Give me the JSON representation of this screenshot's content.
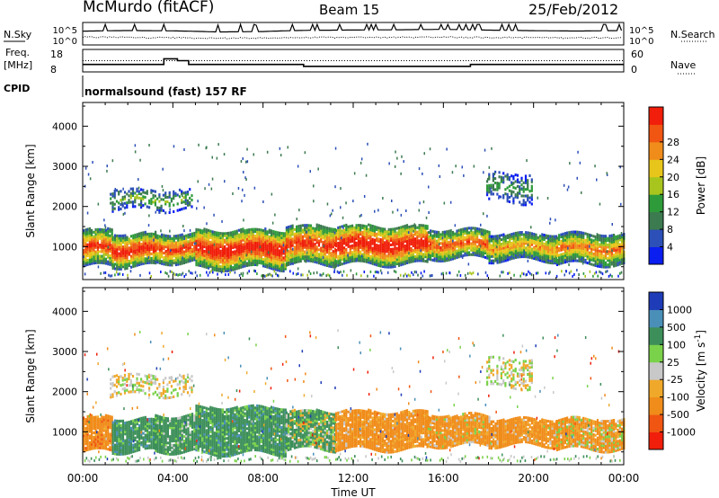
{
  "header": {
    "station": "McMurdo (fitACF)",
    "beam": "Beam 15",
    "date": "25/Feb/2012"
  },
  "summary_panel": {
    "nsky_label": "N.Sky",
    "nsearch_label": "N.Search",
    "noise_ticks": [
      "10^5",
      "10^0"
    ],
    "freq_label_1": "Freq.",
    "freq_label_2": "[MHz]",
    "freq_ticks": [
      "18",
      "8"
    ],
    "nave_label": "Nave",
    "nave_ticks": [
      "60",
      "0"
    ],
    "cpid_label": "CPID",
    "cpid_text": "normalsound (fast) 157 RF"
  },
  "x_axis": {
    "label": "Time UT",
    "ticks": [
      "00:00",
      "04:00",
      "08:00",
      "12:00",
      "16:00",
      "20:00",
      "00:00"
    ]
  },
  "colors": {
    "power": [
      "#0a1ef0",
      "#2c4fb8",
      "#3c7a4f",
      "#2e9b3a",
      "#a8c51e",
      "#e8c51a",
      "#f08c1a",
      "#f05512",
      "#f01e0a"
    ],
    "velocity": [
      "#f01e0a",
      "#f05512",
      "#f08c1a",
      "#f0a82a",
      "#c8c8c8",
      "#7ad24a",
      "#3d8f5a",
      "#4a8fb8",
      "#1e3cb8"
    ]
  },
  "chart_data": [
    {
      "type": "line",
      "title": "",
      "xlabel": "",
      "ylabel": "N.Sky",
      "y2label": "N.Search",
      "yscale": "log",
      "y_tick_labels": [
        "10^0",
        "10^5"
      ],
      "x_hours": [
        0,
        2,
        4,
        6,
        8,
        10,
        12,
        14,
        16,
        18,
        20,
        22,
        24
      ],
      "series": [
        {
          "name": "N.Sky",
          "style": "solid",
          "values": [
            1500,
            2200,
            1800,
            900,
            1200,
            2500,
            3000,
            3500,
            4500,
            2800,
            2000,
            1600,
            2200
          ]
        },
        {
          "name": "N.Search",
          "style": "dotted",
          "values": [
            40,
            35,
            30,
            20,
            25,
            30,
            35,
            35,
            40,
            35,
            30,
            28,
            32
          ]
        }
      ]
    },
    {
      "type": "line",
      "title": "",
      "xlabel": "",
      "ylabel": "Freq. [MHz]",
      "y2label": "Nave",
      "ylim": [
        8,
        18
      ],
      "y2lim": [
        0,
        60
      ],
      "series": [
        {
          "name": "Freq.",
          "style": "solid",
          "x_hours": [
            0,
            3.3,
            3.6,
            4.0,
            4.2,
            4.5,
            4.7,
            9.2,
            9.8,
            16.9,
            17.2,
            21.9,
            22.3,
            24
          ],
          "values": [
            11,
            11,
            14,
            14,
            13,
            13,
            11,
            11,
            10,
            10,
            11,
            11,
            11,
            11
          ]
        },
        {
          "name": "Nave",
          "style": "dotted",
          "x_hours": [
            0,
            24
          ],
          "values": [
            30,
            30
          ]
        }
      ]
    },
    {
      "type": "heatmap",
      "title": "",
      "xlabel": "Time UT",
      "ylabel": "Slant Range [km]",
      "colorbar_label": "Power [dB]",
      "ylim": [
        180,
        4590
      ],
      "xlim": [
        0,
        24
      ],
      "y_ticks": [
        1000,
        2000,
        3000,
        4000
      ],
      "colorbar_ticks": [
        4,
        8,
        12,
        16,
        20,
        24,
        28
      ],
      "bands": [
        {
          "t": [
            0.0,
            1.3
          ],
          "r": [
            500,
            1400
          ],
          "level": 26
        },
        {
          "t": [
            1.3,
            3.2
          ],
          "r": [
            500,
            1300
          ],
          "level": 28
        },
        {
          "t": [
            3.2,
            5.0
          ],
          "r": [
            600,
            1300
          ],
          "level": 26
        },
        {
          "t": [
            5.0,
            9.0
          ],
          "r": [
            450,
            1400
          ],
          "level": 29
        },
        {
          "t": [
            9.0,
            11.2
          ],
          "r": [
            550,
            1500
          ],
          "level": 27
        },
        {
          "t": [
            11.2,
            15.3
          ],
          "r": [
            550,
            1500
          ],
          "level": 30
        },
        {
          "t": [
            15.3,
            18.0
          ],
          "r": [
            700,
            1400
          ],
          "level": 24
        },
        {
          "t": [
            18.0,
            21.0
          ],
          "r": [
            650,
            1300
          ],
          "level": 20
        },
        {
          "t": [
            21.0,
            24.0
          ],
          "r": [
            550,
            1300
          ],
          "level": 22
        },
        {
          "t": [
            1.2,
            4.8
          ],
          "r": [
            1900,
            2400
          ],
          "level": 12
        },
        {
          "t": [
            17.9,
            19.9
          ],
          "r": [
            2100,
            2800
          ],
          "level": 10
        }
      ]
    },
    {
      "type": "heatmap",
      "title": "",
      "xlabel": "Time UT",
      "ylabel": "Slant Range [km]",
      "colorbar_label": "Velocity [m s^-1]",
      "ylim": [
        180,
        4590
      ],
      "xlim": [
        0,
        24
      ],
      "y_ticks": [
        1000,
        2000,
        3000,
        4000
      ],
      "colorbar_ticks": [
        -1000,
        -500,
        -100,
        -25,
        25,
        100,
        500,
        1000
      ],
      "bands": [
        {
          "t": [
            0.0,
            1.3
          ],
          "r": [
            500,
            1350
          ],
          "v": -300
        },
        {
          "t": [
            1.3,
            3.2
          ],
          "r": [
            500,
            1300
          ],
          "v": 300
        },
        {
          "t": [
            3.2,
            5.0
          ],
          "r": [
            500,
            1400
          ],
          "v": 250
        },
        {
          "t": [
            5.0,
            9.0
          ],
          "r": [
            450,
            1600
          ],
          "v": 300
        },
        {
          "t": [
            9.0,
            11.2
          ],
          "r": [
            550,
            1500
          ],
          "v": 150
        },
        {
          "t": [
            11.2,
            15.3
          ],
          "r": [
            550,
            1500
          ],
          "v": -250
        },
        {
          "t": [
            15.3,
            18.0
          ],
          "r": [
            650,
            1400
          ],
          "v": -200
        },
        {
          "t": [
            18.0,
            21.0
          ],
          "r": [
            650,
            1300
          ],
          "v": -250
        },
        {
          "t": [
            21.0,
            24.0
          ],
          "r": [
            550,
            1300
          ],
          "v": -150
        },
        {
          "t": [
            1.2,
            4.8
          ],
          "r": [
            1900,
            2400
          ],
          "v": 0
        },
        {
          "t": [
            17.9,
            19.9
          ],
          "r": [
            2100,
            2800
          ],
          "v": 0
        }
      ]
    }
  ]
}
